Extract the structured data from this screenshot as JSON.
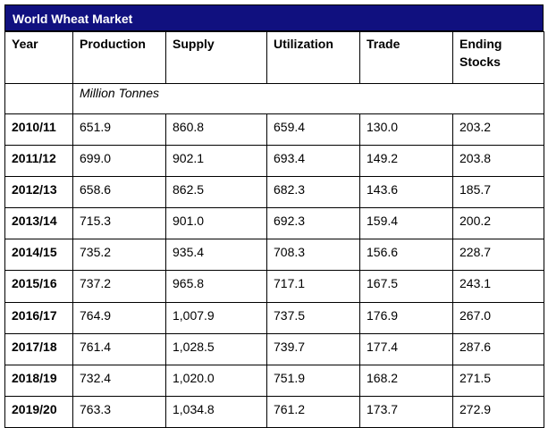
{
  "title": "World Wheat Market",
  "headers": [
    "Year",
    "Production",
    "Supply",
    "Utilization",
    "Trade",
    "Ending Stocks"
  ],
  "unit_label": "Million Tonnes",
  "rows": [
    {
      "year": "2010/11",
      "production": "651.9",
      "supply": "860.8",
      "utilization": "659.4",
      "trade": "130.0",
      "ending_stocks": "203.2"
    },
    {
      "year": "2011/12",
      "production": "699.0",
      "supply": "902.1",
      "utilization": "693.4",
      "trade": "149.2",
      "ending_stocks": "203.8"
    },
    {
      "year": "2012/13",
      "production": "658.6",
      "supply": "862.5",
      "utilization": "682.3",
      "trade": "143.6",
      "ending_stocks": "185.7"
    },
    {
      "year": "2013/14",
      "production": "715.3",
      "supply": "901.0",
      "utilization": "692.3",
      "trade": "159.4",
      "ending_stocks": "200.2"
    },
    {
      "year": "2014/15",
      "production": "735.2",
      "supply": "935.4",
      "utilization": "708.3",
      "trade": "156.6",
      "ending_stocks": "228.7"
    },
    {
      "year": "2015/16",
      "production": "737.2",
      "supply": "965.8",
      "utilization": "717.1",
      "trade": "167.5",
      "ending_stocks": "243.1"
    },
    {
      "year": "2016/17",
      "production": "764.9",
      "supply": "1,007.9",
      "utilization": "737.5",
      "trade": "176.9",
      "ending_stocks": "267.0"
    },
    {
      "year": "2017/18",
      "production": "761.4",
      "supply": "1,028.5",
      "utilization": "739.7",
      "trade": "177.4",
      "ending_stocks": "287.6"
    },
    {
      "year": "2018/19",
      "production": "732.4",
      "supply": "1,020.0",
      "utilization": "751.9",
      "trade": "168.2",
      "ending_stocks": "271.5"
    },
    {
      "year": "2019/20",
      "production": "763.3",
      "supply": "1,034.8",
      "utilization": "761.2",
      "trade": "173.7",
      "ending_stocks": "272.9"
    }
  ],
  "colors": {
    "title_bar": "#10107f",
    "title_text": "#ffffff"
  }
}
